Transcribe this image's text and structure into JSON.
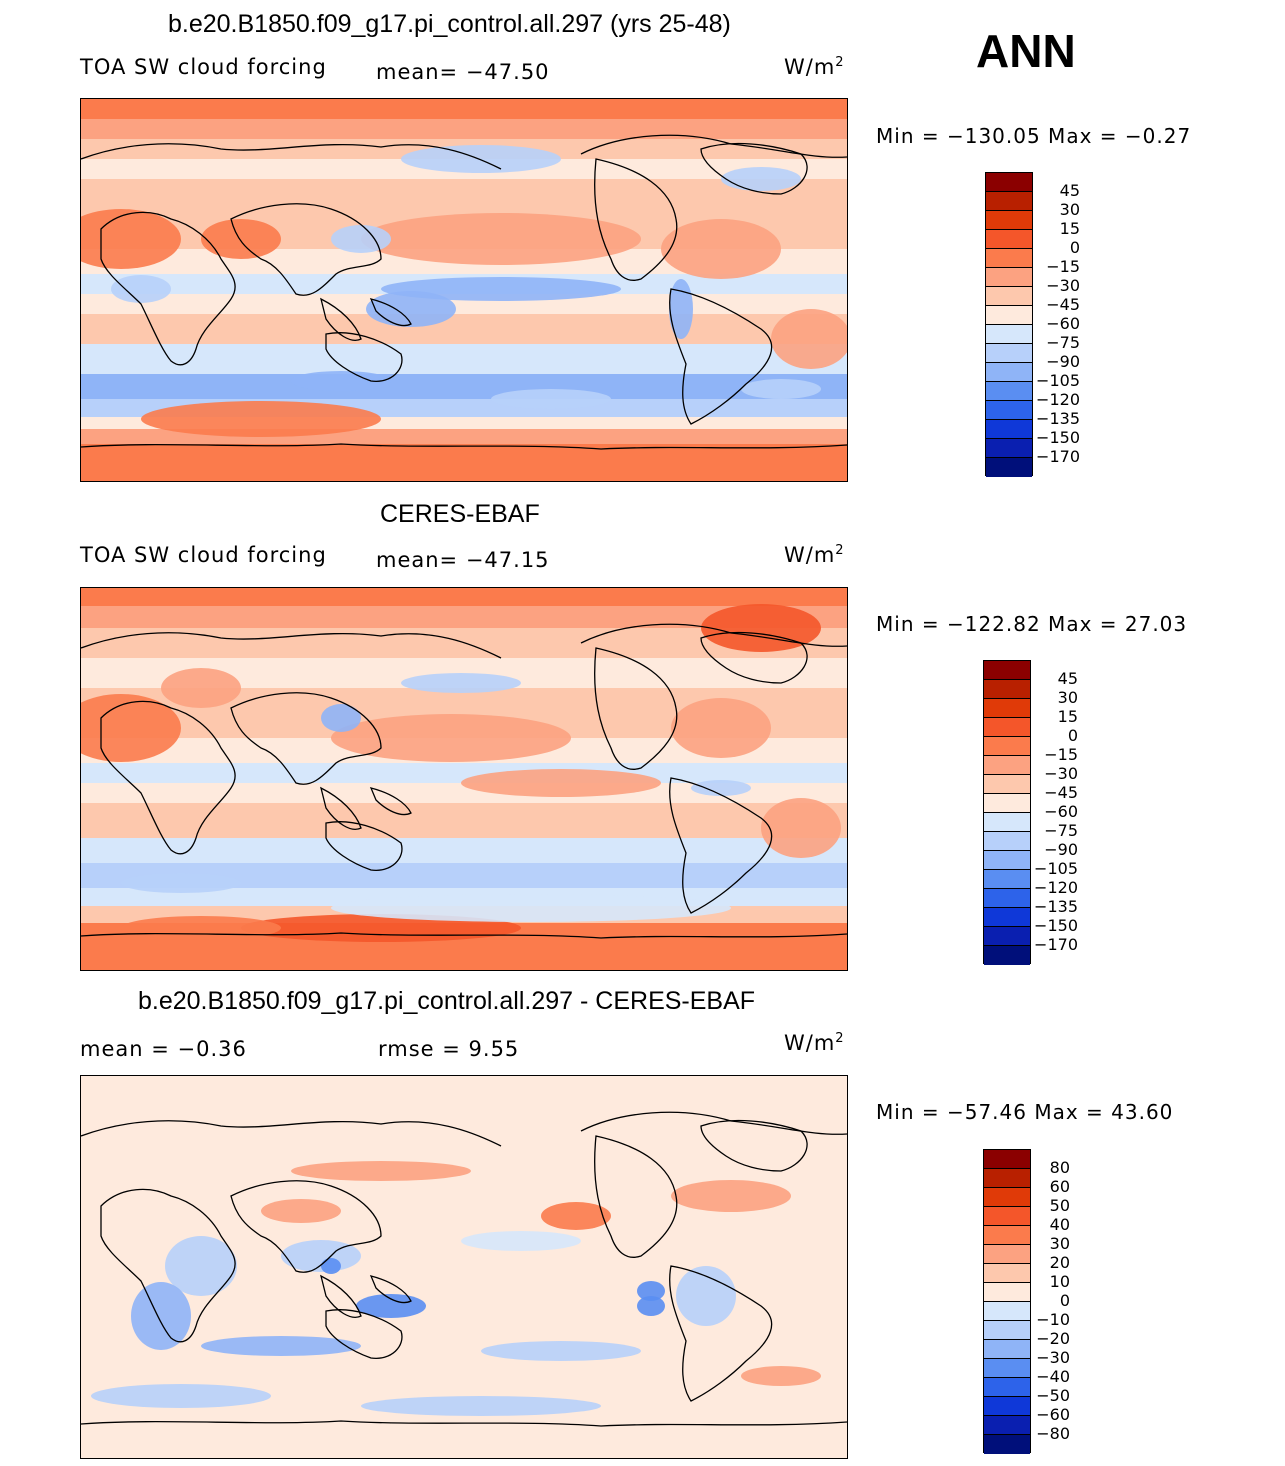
{
  "ann_label": "ANN",
  "panels": [
    {
      "title": "b.e20.B1850.f09_g17.pi_control.all.297 (yrs 25-48)",
      "left_label": "TOA SW cloud forcing",
      "mid_label": "mean=  −47.50",
      "units_base": "W/m",
      "units_exp": "2",
      "minmax": "Min  =  −130.05  Max  =    −0.27",
      "colorbar": {
        "labels": [
          "45",
          "30",
          "15",
          "0",
          "−15",
          "−30",
          "−45",
          "−60",
          "−75",
          "−90",
          "−105",
          "−120",
          "−135",
          "−150",
          "−170"
        ],
        "colors": [
          "#8b0000",
          "#b82000",
          "#e03a08",
          "#f4562a",
          "#fb7b4c",
          "#fca281",
          "#fdc8ad",
          "#feeadd",
          "#d6e7fb",
          "#b7d0fa",
          "#8fb4f7",
          "#5a8ef2",
          "#2d63ea",
          "#0f38d8",
          "#0a1fb0",
          "#000f7a"
        ]
      },
      "field": "model"
    },
    {
      "title": "CERES-EBAF",
      "left_label": "TOA SW cloud forcing",
      "mid_label": "mean=  −47.15",
      "units_base": "W/m",
      "units_exp": "2",
      "minmax": "Min  =  −122.82  Max  =    27.03",
      "colorbar": {
        "labels": [
          "45",
          "30",
          "15",
          "0",
          "−15",
          "−30",
          "−45",
          "−60",
          "−75",
          "−90",
          "−105",
          "−120",
          "−135",
          "−150",
          "−170"
        ],
        "colors": [
          "#8b0000",
          "#b82000",
          "#e03a08",
          "#f4562a",
          "#fb7b4c",
          "#fca281",
          "#fdc8ad",
          "#feeadd",
          "#d6e7fb",
          "#b7d0fa",
          "#8fb4f7",
          "#5a8ef2",
          "#2d63ea",
          "#0f38d8",
          "#0a1fb0",
          "#000f7a"
        ]
      },
      "field": "obs"
    },
    {
      "title": "b.e20.B1850.f09_g17.pi_control.all.297 - CERES-EBAF",
      "left_label": "mean  =    −0.36",
      "mid_label": "rmse  =      9.55",
      "units_base": "W/m",
      "units_exp": "2",
      "minmax": "Min  =  −57.46  Max  =    43.60",
      "colorbar": {
        "labels": [
          "80",
          "60",
          "50",
          "40",
          "30",
          "20",
          "10",
          "0",
          "−10",
          "−20",
          "−30",
          "−40",
          "−50",
          "−60",
          "−80"
        ],
        "colors": [
          "#8b0000",
          "#b82000",
          "#e03a08",
          "#f4562a",
          "#fb7b4c",
          "#fca281",
          "#fdc8ad",
          "#feeadd",
          "#d6e7fb",
          "#b7d0fa",
          "#8fb4f7",
          "#5a8ef2",
          "#2d63ea",
          "#0f38d8",
          "#0a1fb0",
          "#000f7a"
        ]
      },
      "field": "diff"
    }
  ]
}
